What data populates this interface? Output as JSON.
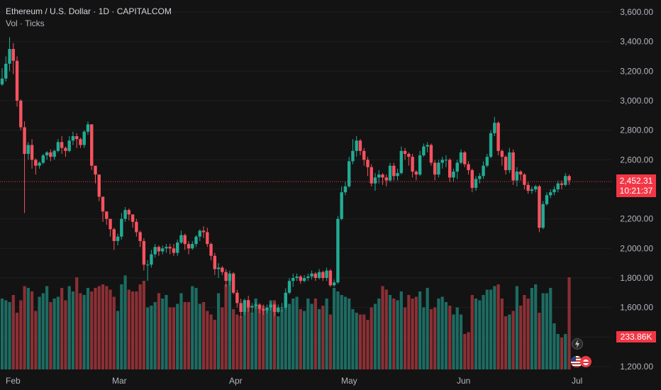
{
  "legend": {
    "title": "Ethereum / U.S. Dollar · 1D · CAPITALCOM",
    "vol": "Vol · Ticks"
  },
  "price_badge": {
    "value": "2,452.31",
    "countdown": "10:21:37"
  },
  "volume_badge": {
    "value": "233.86K"
  },
  "colors": {
    "up": "#22ab94",
    "down": "#f7525f",
    "vol_up": "#1e6b62",
    "vol_down": "#8b3035",
    "background": "#131313"
  },
  "icons": [
    "lightning-icon",
    "us-flag-icon",
    "event-icon"
  ],
  "chart_data": {
    "type": "candlestick",
    "y_axis_ticks": [
      "1,200.00",
      "1,400.00",
      "1,600.00",
      "1,800.00",
      "2,000.00",
      "2,200.00",
      "2,400.00",
      "2,600.00",
      "2,800.00",
      "3,000.00",
      "3,200.00",
      "3,400.00",
      "3,600.00"
    ],
    "y_axis_values": [
      1200,
      1400,
      1600,
      1800,
      2000,
      2200,
      2400,
      2600,
      2800,
      3000,
      3200,
      3400,
      3600
    ],
    "x_axis_ticks": [
      "Feb",
      "Mar",
      "Apr",
      "May",
      "Jun",
      "Jul"
    ],
    "ylim": [
      1200,
      3600
    ],
    "last_price": 2452.31,
    "close": [
      3150,
      3250,
      3350,
      3270,
      3000,
      2820,
      2640,
      2700,
      2600,
      2560,
      2580,
      2630,
      2650,
      2620,
      2660,
      2720,
      2680,
      2660,
      2730,
      2760,
      2740,
      2700,
      2790,
      2840,
      2560,
      2500,
      2350,
      2250,
      2200,
      2130,
      2050,
      2080,
      2200,
      2260,
      2230,
      2180,
      2110,
      2050,
      1890,
      1890,
      1960,
      2010,
      1980,
      2000,
      2010,
      2000,
      1970,
      2040,
      2090,
      2030,
      2000,
      2030,
      2080,
      2120,
      2110,
      2030,
      1950,
      1860,
      1870,
      1840,
      1780,
      1830,
      1700,
      1630,
      1570,
      1650,
      1600,
      1610,
      1620,
      1590,
      1580,
      1600,
      1620,
      1570,
      1600,
      1600,
      1700,
      1780,
      1800,
      1810,
      1780,
      1800,
      1810,
      1830,
      1800,
      1840,
      1800,
      1850,
      1750,
      1770,
      2200,
      2380,
      2420,
      2590,
      2660,
      2730,
      2660,
      2600,
      2550,
      2440,
      2480,
      2500,
      2480,
      2460,
      2560,
      2490,
      2510,
      2660,
      2640,
      2620,
      2520,
      2500,
      2630,
      2690,
      2700,
      2580,
      2500,
      2580,
      2600,
      2600,
      2480,
      2520,
      2580,
      2650,
      2570,
      2530,
      2410,
      2470,
      2490,
      2560,
      2620,
      2780,
      2850,
      2660,
      2620,
      2530,
      2650,
      2460,
      2520,
      2500,
      2430,
      2390,
      2400,
      2420,
      2140,
      2300,
      2360,
      2380,
      2400,
      2440,
      2430,
      2490,
      2460
    ],
    "high": [
      3220,
      3300,
      3430,
      3390,
      3300,
      3010,
      2860,
      2720,
      2740,
      2610,
      2590,
      2640,
      2660,
      2670,
      2670,
      2740,
      2760,
      2690,
      2760,
      2790,
      2780,
      2750,
      2800,
      2860,
      2840,
      2550,
      2500,
      2350,
      2250,
      2200,
      2140,
      2100,
      2240,
      2280,
      2270,
      2230,
      2200,
      2120,
      2070,
      1920,
      1990,
      2030,
      2020,
      2020,
      2030,
      2030,
      2030,
      2060,
      2120,
      2100,
      2050,
      2050,
      2090,
      2130,
      2150,
      2140,
      2040,
      1970,
      1900,
      1880,
      1860,
      1850,
      1840,
      1720,
      1660,
      1660,
      1680,
      1630,
      1640,
      1630,
      1620,
      1620,
      1640,
      1630,
      1620,
      1630,
      1730,
      1800,
      1830,
      1830,
      1820,
      1820,
      1830,
      1850,
      1840,
      1860,
      1850,
      1870,
      1860,
      1790,
      2220,
      2420,
      2450,
      2620,
      2740,
      2760,
      2740,
      2680,
      2620,
      2570,
      2510,
      2530,
      2510,
      2500,
      2580,
      2580,
      2540,
      2690,
      2680,
      2650,
      2640,
      2530,
      2660,
      2710,
      2720,
      2710,
      2600,
      2600,
      2620,
      2630,
      2610,
      2540,
      2600,
      2670,
      2660,
      2590,
      2540,
      2490,
      2510,
      2590,
      2640,
      2800,
      2890,
      2860,
      2670,
      2630,
      2680,
      2670,
      2550,
      2530,
      2510,
      2450,
      2420,
      2430,
      2430,
      2320,
      2380,
      2400,
      2420,
      2460,
      2460,
      2510,
      2500
    ],
    "low": [
      3100,
      3130,
      3200,
      3180,
      2960,
      2800,
      2240,
      2600,
      2540,
      2500,
      2540,
      2570,
      2600,
      2590,
      2600,
      2650,
      2640,
      2620,
      2650,
      2700,
      2680,
      2680,
      2680,
      2770,
      2530,
      2440,
      2320,
      2180,
      2160,
      2080,
      1990,
      2020,
      2060,
      2180,
      2190,
      2140,
      2080,
      2010,
      1850,
      1780,
      1870,
      1940,
      1950,
      1960,
      1970,
      1960,
      1950,
      1950,
      2030,
      1990,
      1960,
      1990,
      2010,
      2050,
      2070,
      2010,
      1920,
      1820,
      1800,
      1820,
      1740,
      1750,
      1690,
      1600,
      1530,
      1550,
      1570,
      1560,
      1590,
      1560,
      1550,
      1560,
      1580,
      1540,
      1560,
      1570,
      1590,
      1690,
      1740,
      1780,
      1760,
      1770,
      1780,
      1790,
      1780,
      1790,
      1780,
      1780,
      1740,
      1740,
      1760,
      2190,
      2360,
      2410,
      2570,
      2620,
      2630,
      2560,
      2490,
      2420,
      2390,
      2440,
      2430,
      2420,
      2450,
      2460,
      2460,
      2500,
      2600,
      2560,
      2480,
      2460,
      2490,
      2620,
      2650,
      2560,
      2460,
      2480,
      2540,
      2550,
      2450,
      2450,
      2470,
      2570,
      2550,
      2500,
      2380,
      2390,
      2440,
      2470,
      2550,
      2610,
      2760,
      2630,
      2560,
      2500,
      2510,
      2430,
      2420,
      2460,
      2400,
      2370,
      2370,
      2380,
      2110,
      2130,
      2290,
      2340,
      2360,
      2380,
      2400,
      2420,
      2430
    ],
    "volume": [
      400,
      390,
      380,
      420,
      320,
      390,
      470,
      460,
      440,
      330,
      410,
      430,
      470,
      380,
      400,
      410,
      460,
      390,
      470,
      440,
      520,
      430,
      420,
      460,
      440,
      460,
      470,
      480,
      470,
      450,
      410,
      330,
      480,
      530,
      450,
      440,
      440,
      480,
      500,
      350,
      360,
      380,
      430,
      400,
      420,
      350,
      350,
      370,
      430,
      380,
      380,
      470,
      460,
      370,
      380,
      330,
      310,
      280,
      430,
      350,
      480,
      500,
      340,
      310,
      300,
      340,
      380,
      320,
      400,
      360,
      360,
      340,
      390,
      390,
      300,
      340,
      420,
      370,
      400,
      410,
      340,
      330,
      400,
      370,
      400,
      340,
      360,
      400,
      310,
      460,
      440,
      420,
      410,
      400,
      340,
      320,
      310,
      310,
      280,
      350,
      370,
      400,
      470,
      450,
      420,
      400,
      390,
      440,
      350,
      420,
      400,
      410,
      440,
      350,
      460,
      340,
      350,
      400,
      410,
      380,
      360,
      310,
      350,
      310,
      200,
      210,
      420,
      400,
      390,
      420,
      450,
      450,
      470,
      480,
      400,
      300,
      310,
      330,
      470,
      360,
      420,
      400,
      460,
      480,
      320,
      430,
      430,
      460,
      260,
      200,
      180,
      200,
      520
    ]
  }
}
